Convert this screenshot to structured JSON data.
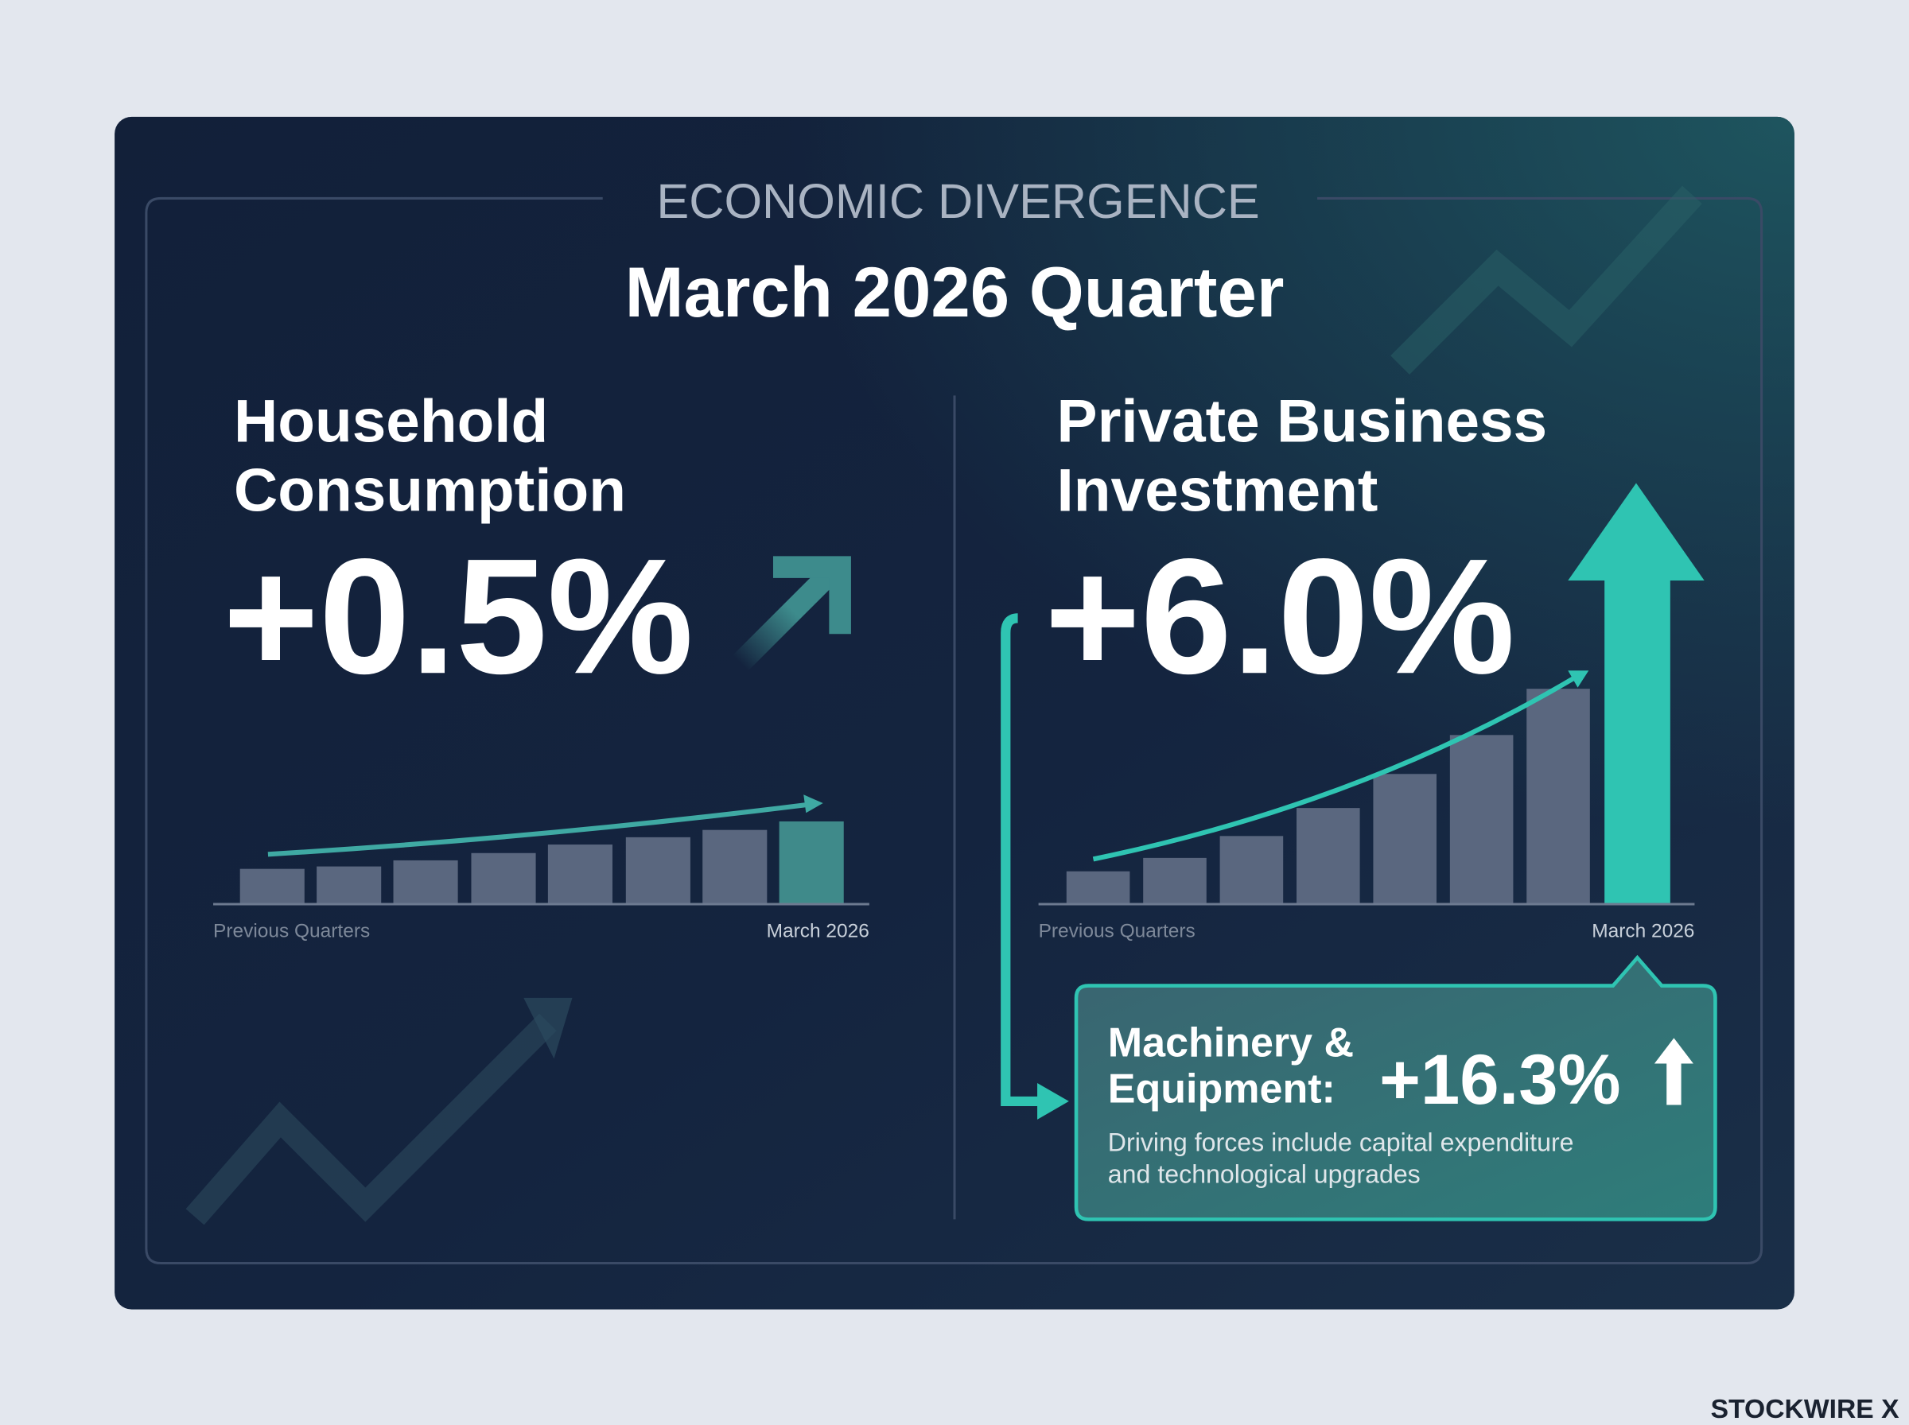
{
  "header": {
    "kicker": "ECONOMIC DIVERGENCE",
    "title": "March 2026 Quarter"
  },
  "panels": [
    {
      "title_lines": [
        "Household",
        "Consumption"
      ],
      "value": "+0.5%",
      "axis_start": "Previous Quarters",
      "axis_end": "March 2026"
    },
    {
      "title_lines": [
        "Private Business",
        "Investment"
      ],
      "value": "+6.0%",
      "axis_start": "Previous Quarters",
      "axis_end": "March 2026"
    }
  ],
  "callout": {
    "label_lines": [
      "Machinery &",
      "Equipment:"
    ],
    "value": "+16.3%",
    "description_lines": [
      "Driving forces include capital expenditure",
      "and technological upgrades"
    ]
  },
  "brand": "STOCKWIRE X"
}
